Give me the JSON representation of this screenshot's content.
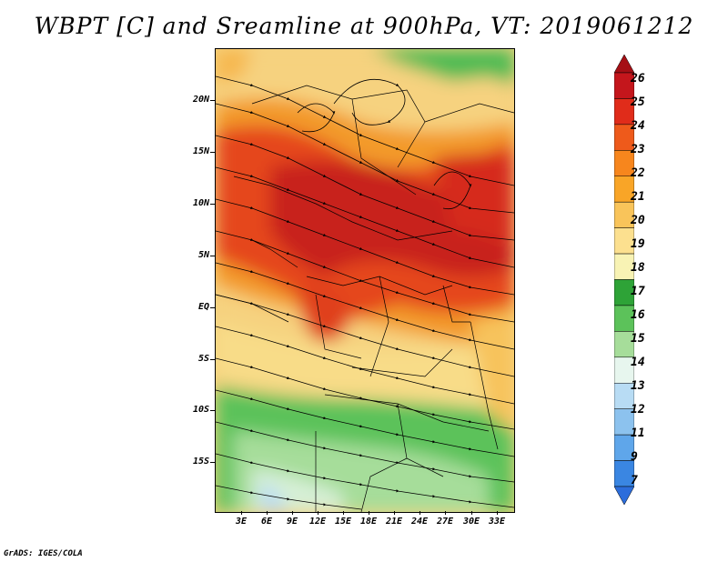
{
  "title": "WBPT [C] and Sreamline at 900hPa, VT: 2019061212",
  "credit": "GrADS: IGES/COLA",
  "lat_labels": [
    "20N",
    "15N",
    "10N",
    "5N",
    "EQ",
    "5S",
    "10S",
    "15S"
  ],
  "lon_labels": [
    "3E",
    "6E",
    "9E",
    "12E",
    "15E",
    "18E",
    "21E",
    "24E",
    "27E",
    "30E",
    "33E"
  ],
  "colorbar": {
    "labels": [
      "26",
      "25",
      "24",
      "23",
      "22",
      "21",
      "20",
      "19",
      "18",
      "17",
      "16",
      "15",
      "14",
      "13",
      "12",
      "11",
      "9",
      "7"
    ],
    "colors": [
      "#a50f15",
      "#c4161c",
      "#e02c1a",
      "#ee5a1b",
      "#f7861d",
      "#f9a527",
      "#f9c45a",
      "#fce08f",
      "#f8f3b4",
      "#2ea337",
      "#5cc25a",
      "#a6dd9a",
      "#e7f6ee",
      "#b8dcf4",
      "#8cc2ee",
      "#5fa6ea",
      "#3a86e2",
      "#2c6ddb"
    ]
  }
}
